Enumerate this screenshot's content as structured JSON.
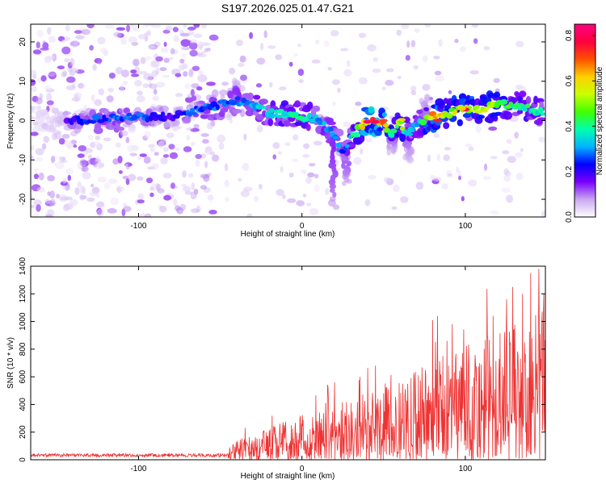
{
  "title": "S197.2026.025.01.47.G21",
  "chart_data": [
    {
      "type": "heatmap",
      "title": "S197.2026.025.01.47.G21",
      "xlabel": "Height of straight line (km)",
      "ylabel": "Frequency (Hz)",
      "xlim": [
        -166,
        149
      ],
      "ylim": [
        -24.5,
        24.5
      ],
      "xticks": [
        -100,
        0,
        100
      ],
      "yticks": [
        -20,
        -10,
        0,
        10,
        20
      ],
      "colorbar": {
        "label": "Normalized spectral amplitude",
        "range": [
          0.0,
          0.85
        ],
        "ticks": [
          0.0,
          0.2,
          0.4,
          0.6,
          0.8
        ],
        "colors": [
          "#ffffff",
          "#c8a8f0",
          "#7a00ff",
          "#0000ff",
          "#00b4ff",
          "#00ffb0",
          "#40ff00",
          "#c8ff00",
          "#ffd000",
          "#ff5000",
          "#ff0040",
          "#ff0080"
        ]
      },
      "ridge": {
        "x": [
          -160,
          -140,
          -120,
          -100,
          -80,
          -70,
          -60,
          -40,
          -30,
          -20,
          0,
          10,
          20,
          25,
          30,
          40,
          50,
          55,
          60,
          65,
          70,
          80,
          90,
          100,
          110,
          120,
          130,
          140,
          149
        ],
        "y": [
          0,
          0,
          0.5,
          1,
          1,
          2,
          3,
          5,
          4,
          2,
          1,
          0,
          -4,
          -8,
          -4,
          0,
          -1,
          -3,
          0,
          -4,
          -1,
          1,
          2,
          3,
          3,
          4,
          4,
          3,
          2
        ],
        "amplitude": [
          0.05,
          0.25,
          0.3,
          0.3,
          0.2,
          0.3,
          0.3,
          0.3,
          0.35,
          0.4,
          0.45,
          0.35,
          0.35,
          0.3,
          0.4,
          0.8,
          0.75,
          0.45,
          0.6,
          0.4,
          0.35,
          0.7,
          0.6,
          0.65,
          0.6,
          0.55,
          0.45,
          0.45,
          0.4
        ]
      }
    },
    {
      "type": "line",
      "xlabel": "Height of straight line (km)",
      "ylabel": "SNR (10 * v/v)",
      "xlim": [
        -166,
        149
      ],
      "ylim": [
        0,
        1400
      ],
      "xticks": [
        -100,
        0,
        100
      ],
      "yticks": [
        0,
        200,
        400,
        600,
        800,
        1000,
        1200,
        1400
      ],
      "color": "#ee3333",
      "envelope": {
        "x": [
          -166,
          -120,
          -60,
          -50,
          -40,
          -20,
          0,
          20,
          40,
          60,
          80,
          100,
          120,
          140,
          149
        ],
        "y": [
          40,
          45,
          45,
          50,
          150,
          230,
          330,
          420,
          480,
          580,
          720,
          830,
          920,
          1050,
          1100
        ]
      },
      "peaks": [
        {
          "x": 20,
          "y": 560
        },
        {
          "x": 45,
          "y": 680
        },
        {
          "x": 80,
          "y": 1010
        },
        {
          "x": 83,
          "y": 1040
        },
        {
          "x": 92,
          "y": 980
        },
        {
          "x": 117,
          "y": 1040
        },
        {
          "x": 129,
          "y": 1250
        },
        {
          "x": 135,
          "y": 1200
        },
        {
          "x": 140,
          "y": 1350
        },
        {
          "x": 145,
          "y": 1380
        },
        {
          "x": 148,
          "y": 1200
        }
      ]
    }
  ]
}
